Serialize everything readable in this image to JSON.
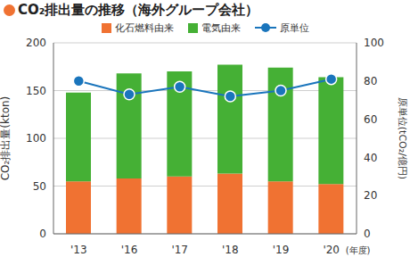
{
  "chart_data": {
    "type": "bar",
    "title": "CO₂排出量の推移（海外グループ会社）",
    "categories": [
      "'13",
      "'16",
      "'17",
      "'18",
      "'19",
      "'20"
    ],
    "x_label": "(年度)",
    "y_label": "CO₂排出量(kton)",
    "y2_label": "原単位(tCO₂/億円)",
    "stacked": true,
    "grid": true,
    "legend": "top",
    "ylim": [
      0,
      200
    ],
    "yticks": [
      0,
      50,
      100,
      150,
      200
    ],
    "y2lim": [
      0,
      100
    ],
    "y2ticks": [
      0,
      20,
      40,
      60,
      80,
      100
    ],
    "series": [
      {
        "name": "化石燃料由来",
        "type": "bar",
        "color": "#f07232",
        "values": [
          55,
          58,
          60,
          63,
          55,
          52
        ]
      },
      {
        "name": "電気由来",
        "type": "bar",
        "color": "#45b035",
        "values": [
          93,
          110,
          110,
          114,
          119,
          112
        ]
      },
      {
        "name": "原単位",
        "type": "line",
        "axis": "y2",
        "color": "#1a75bc",
        "marker": "circle",
        "values": [
          80,
          73,
          77,
          72,
          75,
          81
        ]
      }
    ]
  }
}
